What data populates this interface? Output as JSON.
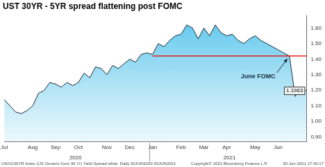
{
  "chart_data": {
    "type": "area",
    "title": "UST 30YR - 5YR spread flattening post FOMC",
    "categories": [
      "Jul",
      null,
      null,
      null,
      null,
      "Aug",
      null,
      null,
      null,
      "Sep",
      null,
      null,
      null,
      "Oct",
      null,
      null,
      null,
      null,
      "Nov",
      null,
      null,
      null,
      "Dec",
      null,
      null,
      null,
      "Jan",
      null,
      null,
      null,
      null,
      "Feb",
      null,
      null,
      null,
      "Mar",
      null,
      null,
      null,
      "Apr",
      null,
      null,
      null,
      null,
      "May",
      null,
      null,
      null,
      "Jun",
      null,
      null,
      null,
      null,
      null
    ],
    "values": [
      1.14,
      1.1,
      1.06,
      1.05,
      1.07,
      1.1,
      1.18,
      1.2,
      1.25,
      1.24,
      1.22,
      1.25,
      1.23,
      1.25,
      1.31,
      1.28,
      1.35,
      1.34,
      1.3,
      1.36,
      1.34,
      1.37,
      1.4,
      1.38,
      1.43,
      1.44,
      1.43,
      1.5,
      1.48,
      1.52,
      1.55,
      1.56,
      1.62,
      1.6,
      1.53,
      1.6,
      1.55,
      1.62,
      1.57,
      1.55,
      1.56,
      1.52,
      1.5,
      1.53,
      1.55,
      1.52,
      1.5,
      1.48,
      1.46,
      1.44,
      1.42,
      1.16,
      1.22,
      1.1963
    ],
    "color": "#5cc6ec",
    "ylim": [
      0.87,
      1.68
    ],
    "yticks": [
      {
        "value": 0.9,
        "label": "0.90"
      },
      {
        "value": 1.0,
        "label": "1.00"
      },
      {
        "value": 1.1,
        "label": "1.10"
      },
      {
        "value": 1.2,
        "label": "1.20"
      },
      {
        "value": 1.3,
        "label": "1.30"
      },
      {
        "value": 1.4,
        "label": "1.40"
      },
      {
        "value": 1.5,
        "label": "1.50"
      },
      {
        "value": 1.6,
        "label": "1.60"
      }
    ],
    "grid": false,
    "year_labels": [
      "2020",
      "2021"
    ],
    "reference_line": {
      "value": 1.42,
      "color": "#e3201b"
    },
    "annotations": [
      {
        "text": "June FOMC"
      }
    ],
    "source": "USGG30YR Index (US Generic Govt 30 Yr) Yield Spread white  Daily 30JUN2020-30JUN2021",
    "copyright": "Copyright© 2021 Bloomberg Finance L.P.",
    "timestamp": "30-Jun-2021 17:43:17"
  }
}
